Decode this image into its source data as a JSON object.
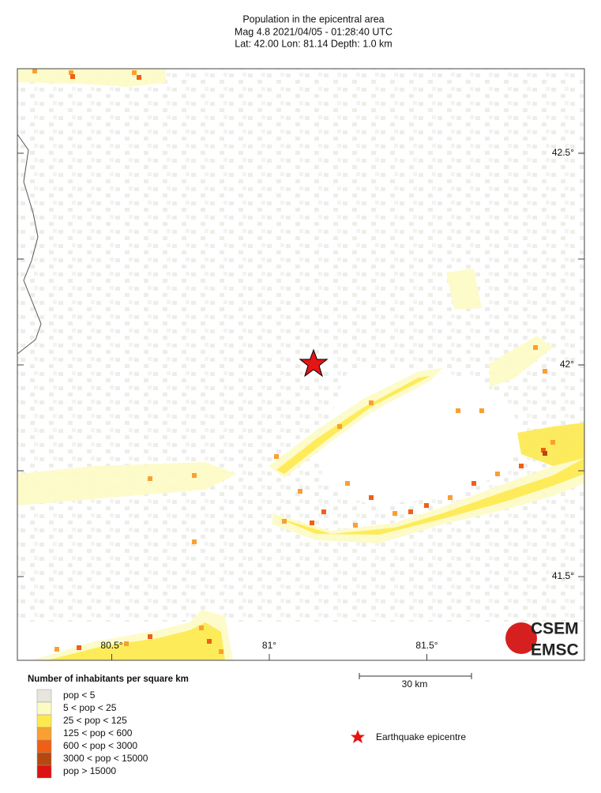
{
  "header": {
    "title": "Population in the epicentral area",
    "line2": "Mag 4.8  2021/04/05 - 01:28:40 UTC",
    "line3": "Lat: 42.00   Lon: 81.14     Depth:  1.0 km"
  },
  "map": {
    "lat_ticks": [
      {
        "value": 42.5,
        "label": "42.5°"
      },
      {
        "value": 42,
        "label": "42°"
      },
      {
        "value": 41.5,
        "label": "41.5°"
      }
    ],
    "lon_ticks": [
      {
        "value": 80.5,
        "label": "80.5°"
      },
      {
        "value": 81,
        "label": "81°"
      },
      {
        "value": 81.5,
        "label": "81.5°"
      }
    ]
  },
  "legend": {
    "title": "Number of inhabitants per square km",
    "items": [
      {
        "label": "pop < 5",
        "color": "#e6e6df"
      },
      {
        "label": "5 < pop < 25",
        "color": "#fdfbc4"
      },
      {
        "label": "25 < pop < 125",
        "color": "#fde94e"
      },
      {
        "label": "125 < pop < 600",
        "color": "#f9a033"
      },
      {
        "label": "600 < pop < 3000",
        "color": "#ef5f16"
      },
      {
        "label": "3000 < pop < 15000",
        "color": "#b5480f"
      },
      {
        "label": "pop > 15000",
        "color": "#dd1212"
      }
    ]
  },
  "scale_bar": "30 km",
  "epicentre_label": "Earthquake epicentre",
  "logo": {
    "top": "CSEM",
    "bottom": "EMSC"
  }
}
